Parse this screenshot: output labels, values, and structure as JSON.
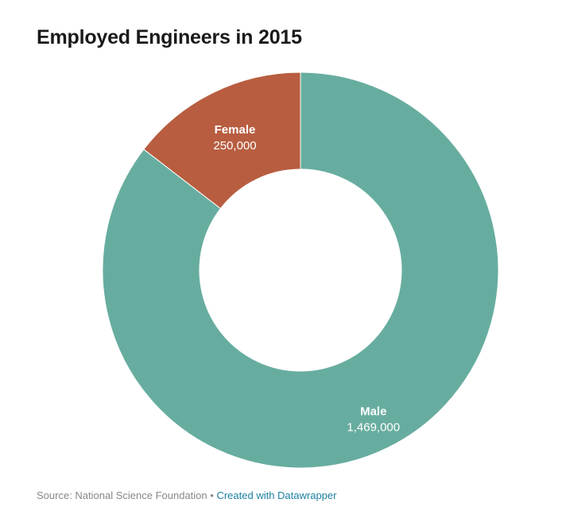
{
  "chart_data": {
    "type": "pie",
    "donut": true,
    "title": "Employed Engineers in 2015",
    "slices": [
      {
        "label": "Male",
        "value": 1469000,
        "value_label": "1,469,000",
        "color": "#67ad9f"
      },
      {
        "label": "Female",
        "value": 250000,
        "value_label": "250,000",
        "color": "#b85d40"
      }
    ]
  },
  "footer": {
    "source": "Source: National Science Foundation",
    "separator": "•",
    "credit": "Created with Datawrapper"
  }
}
